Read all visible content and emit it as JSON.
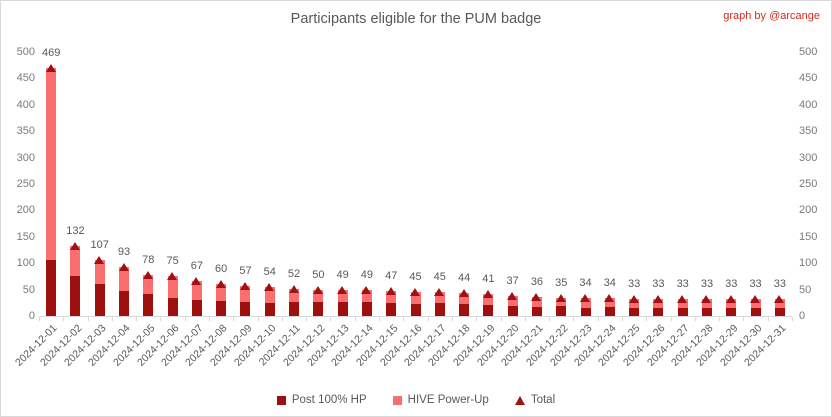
{
  "header": {
    "title": "Participants eligible for the PUM badge",
    "credit": "graph by @arcange"
  },
  "colors": {
    "post_hp": "#9e1010",
    "hive_powerup": "#f96f6f",
    "total_marker": "#a01113",
    "credit_text": "#cf2d21",
    "axis_text": "#7a7a7a",
    "label_text": "#595959",
    "axis_line": "#d9d9d9"
  },
  "chart_data": {
    "type": "bar",
    "stacked": true,
    "grid": false,
    "legend_position": "bottom",
    "title": "Participants eligible for the PUM badge",
    "xlabel": "",
    "ylabel": "",
    "y_axis": {
      "min": 0,
      "max": 500,
      "step": 50,
      "sides": "both"
    },
    "categories": [
      "2024-12-01",
      "2024-12-02",
      "2024-12-03",
      "2024-12-04",
      "2024-12-05",
      "2024-12-06",
      "2024-12-07",
      "2024-12-08",
      "2024-12-09",
      "2024-12-10",
      "2024-12-11",
      "2024-12-12",
      "2024-12-13",
      "2024-12-14",
      "2024-12-15",
      "2024-12-16",
      "2024-12-17",
      "2024-12-18",
      "2024-12-19",
      "2024-12-20",
      "2024-12-21",
      "2024-12-22",
      "2024-12-23",
      "2024-12-24",
      "2024-12-25",
      "2024-12-26",
      "2024-12-27",
      "2024-12-28",
      "2024-12-29",
      "2024-12-30",
      "2024-12-31"
    ],
    "series": [
      {
        "name": "Post 100% HP",
        "color": "#9e1010",
        "values": [
          106,
          76,
          60,
          48,
          41,
          35,
          31,
          29,
          27,
          25,
          27,
          26,
          26,
          26,
          25,
          23,
          24,
          23,
          20,
          19,
          17,
          18,
          16,
          17,
          16,
          16,
          16,
          16,
          16,
          16,
          16
        ]
      },
      {
        "name": "HIVE Power-Up",
        "color": "#f96f6f",
        "values": [
          363,
          56,
          47,
          45,
          37,
          40,
          36,
          31,
          30,
          29,
          25,
          24,
          23,
          23,
          22,
          22,
          21,
          21,
          21,
          18,
          19,
          17,
          18,
          17,
          17,
          17,
          17,
          17,
          17,
          17,
          17
        ]
      }
    ],
    "total_marker": {
      "name": "Total",
      "shape": "triangle-up",
      "color": "#a01113",
      "values": [
        469,
        132,
        107,
        93,
        78,
        75,
        67,
        60,
        57,
        54,
        52,
        50,
        49,
        49,
        47,
        45,
        45,
        44,
        41,
        37,
        36,
        35,
        34,
        34,
        33,
        33,
        33,
        33,
        33,
        33,
        33
      ]
    },
    "value_labels": [
      469,
      132,
      107,
      93,
      78,
      75,
      67,
      60,
      57,
      54,
      52,
      50,
      49,
      49,
      47,
      45,
      45,
      44,
      41,
      37,
      36,
      35,
      34,
      34,
      33,
      33,
      33,
      33,
      33,
      33,
      33
    ]
  }
}
